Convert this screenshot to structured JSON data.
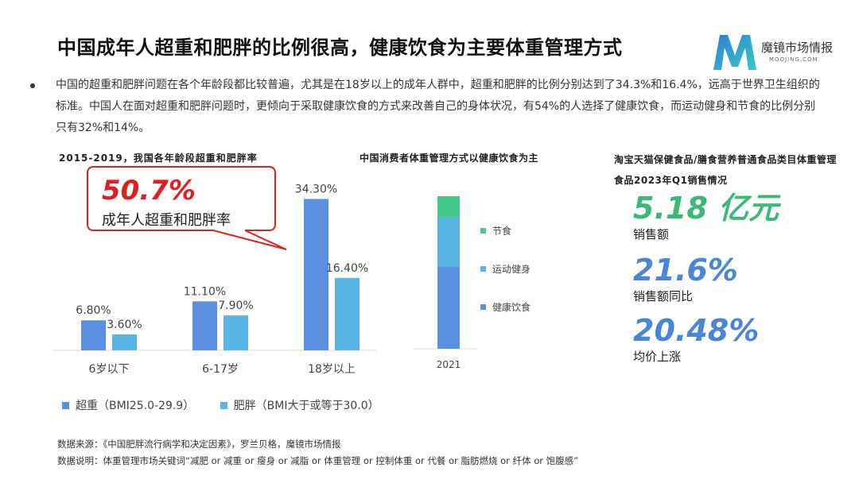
{
  "title": "中国成年人超重和肥胖的比例很高，健康饮食为主要体重管理方式",
  "brand": {
    "name": "魔镜市场情报",
    "domain": "MOOJING.COM"
  },
  "bullet_text": "中国的超重和肥胖问题在各个年龄段都比较普遍，尤其是在18岁以上的成年人群中，超重和肥胖的比例分别达到了34.3%和16.4%，远高于世界卫生组织的标准。中国人在面对超重和肥胖问题时，更倾向于采取健康饮食的方式来改善自己的身体状况，有54%的人选择了健康饮食，而运动健身和节食的比例分别只有32%和14%。",
  "callout": {
    "value": "50.7%",
    "label": "成年人超重和肥胖率"
  },
  "kpis": [
    {
      "value": "5.18 亿元",
      "label": "销售额",
      "color": "#3cb878"
    },
    {
      "value": "21.6%",
      "label": "销售额同比",
      "color": "#4a86d8"
    },
    {
      "value": "20.48%",
      "label": "均价上涨",
      "color": "#4a86d8"
    }
  ],
  "kpi_section_title": "淘宝天猫保健食品/膳食营养普通食品类目体重管理食品2023年Q1销售情况",
  "chart_data": [
    {
      "type": "bar",
      "title": "2015-2019，我国各年龄段超重和肥胖率",
      "categories": [
        "6岁以下",
        "6-17岁",
        "18岁以上"
      ],
      "series": [
        {
          "name": "超重（BMI25.0-29.9）",
          "values": [
            6.8,
            11.1,
            34.3
          ],
          "labels": [
            "6.80%",
            "11.10%",
            "34.30%"
          ],
          "color": "#5b8fe0"
        },
        {
          "name": "肥胖（BMI大于或等于30.0）",
          "values": [
            3.6,
            7.9,
            16.4
          ],
          "labels": [
            "3.60%",
            "7.90%",
            "16.40%"
          ],
          "color": "#58b4e4"
        }
      ],
      "ylim": [
        0,
        36
      ],
      "grid": false,
      "legend": "bottom"
    },
    {
      "type": "bar",
      "stacked": true,
      "title": "中国消费者体重管理方式以健康饮食为主",
      "categories": [
        "2021"
      ],
      "series": [
        {
          "name": "健康饮食",
          "values": [
            54
          ],
          "color": "#5b8fe0"
        },
        {
          "name": "运动健身",
          "values": [
            32
          ],
          "color": "#58b4e4"
        },
        {
          "name": "节食",
          "values": [
            14
          ],
          "color": "#45c98c"
        }
      ],
      "ylim": [
        0,
        100
      ],
      "grid": false,
      "legend": "right"
    }
  ],
  "footnotes": [
    "数据来源：《中国肥胖流行病学和决定因素》，罗兰贝格，魔镜市场情报",
    "数据说明：体重管理市场关键词“减肥 or 减重 or 瘦身 or 减脂 or 体重管理 or 控制体重 or 代餐 or 脂肪燃烧 or 纤体 or 饱腹感”"
  ]
}
